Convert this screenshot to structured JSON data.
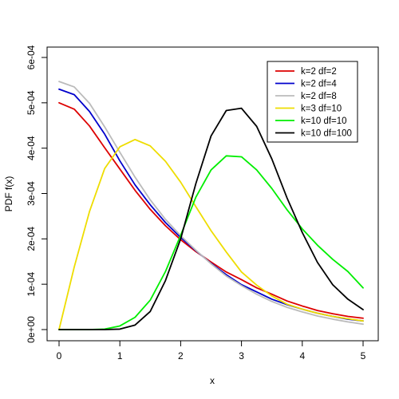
{
  "chart_data": {
    "type": "line",
    "title": "",
    "xlabel": "x",
    "ylabel": "PDF f(x)",
    "xlim": [
      0,
      5
    ],
    "ylim": [
      0,
      0.0006
    ],
    "grid": false,
    "legend_position": "top-right",
    "x_ticks": [
      0,
      1,
      2,
      3,
      4,
      5
    ],
    "x_tick_labels": [
      "0",
      "1",
      "2",
      "3",
      "4",
      "5"
    ],
    "y_ticks": [
      0,
      0.0001,
      0.0002,
      0.0003,
      0.0004,
      0.0005,
      0.0006
    ],
    "y_tick_labels": [
      "0e+00",
      "1e-04",
      "2e-04",
      "3e-04",
      "4e-04",
      "5e-04",
      "6e-04"
    ],
    "x": [
      0,
      0.25,
      0.5,
      0.75,
      1.0,
      1.25,
      1.5,
      1.75,
      2.0,
      2.25,
      2.5,
      2.75,
      3.0,
      3.25,
      3.5,
      3.75,
      4.0,
      4.25,
      4.5,
      4.75,
      5.0
    ],
    "series": [
      {
        "name": "k=2 df=2",
        "color": "#dd0000",
        "values": [
          0.0005,
          0.000486,
          0.000449,
          0.000401,
          0.000354,
          0.000307,
          0.000265,
          0.000229,
          0.000198,
          0.000172,
          0.000149,
          0.000127,
          0.00011,
          9.2e-05,
          7.8e-05,
          6.3e-05,
          5.2e-05,
          4.2e-05,
          3.5e-05,
          2.9e-05,
          2.5e-05
        ]
      },
      {
        "name": "k=2 df=4",
        "color": "#0000cc",
        "values": [
          0.00053,
          0.000518,
          0.000481,
          0.000431,
          0.000372,
          0.000319,
          0.000275,
          0.000236,
          0.000203,
          0.000174,
          0.000146,
          0.000121,
          9.9e-05,
          8.3e-05,
          6.7e-05,
          5.5e-05,
          4.5e-05,
          3.6e-05,
          2.9e-05,
          2.3e-05,
          1.9e-05
        ]
      },
      {
        "name": "k=2 df=8",
        "color": "#bbbbbb",
        "values": [
          0.000547,
          0.000535,
          0.000499,
          0.000447,
          0.000391,
          0.000336,
          0.000286,
          0.000243,
          0.000207,
          0.000175,
          0.000145,
          0.000118,
          9.7e-05,
          7.8e-05,
          6.2e-05,
          4.9e-05,
          3.9e-05,
          3e-05,
          2.3e-05,
          1.7e-05,
          1.2e-05
        ]
      },
      {
        "name": "k=3 df=10",
        "color": "#eedd00",
        "values": [
          0.0,
          0.000138,
          0.00026,
          0.000355,
          0.000403,
          0.000419,
          0.000405,
          0.000371,
          0.000325,
          0.000271,
          0.000218,
          0.000171,
          0.000127,
          9.8e-05,
          7.4e-05,
          5.6e-05,
          4.5e-05,
          3.6e-05,
          2.9e-05,
          2.4e-05,
          1.9e-05
        ]
      },
      {
        "name": "k=10 df=10",
        "color": "#00ee00",
        "values": [
          0.0,
          0.0,
          0.0,
          1e-06,
          8e-06,
          2.7e-05,
          6.5e-05,
          0.000128,
          0.000208,
          0.000292,
          0.000352,
          0.000383,
          0.000381,
          0.000352,
          0.000311,
          0.000264,
          0.000222,
          0.000186,
          0.000155,
          0.000128,
          9.2e-05
        ]
      },
      {
        "name": "k=10 df=100",
        "color": "#000000",
        "values": [
          0.0,
          0.0,
          0.0,
          0.0,
          1e-06,
          1e-05,
          4e-05,
          0.000108,
          0.0002,
          0.000322,
          0.000427,
          0.000483,
          0.000488,
          0.000448,
          0.000376,
          0.00029,
          0.000214,
          0.000148,
          9.9e-05,
          6.7e-05,
          4.4e-05
        ]
      }
    ]
  }
}
